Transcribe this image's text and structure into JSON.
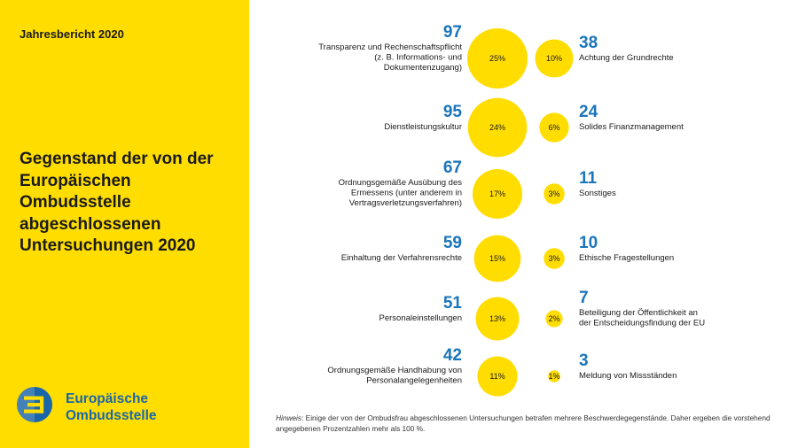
{
  "sidebar": {
    "report_label": "Jahresbericht 2020",
    "title": "Gegenstand der von der Europäischen Ombudsstelle abgeschlossenen Untersuchungen 2020",
    "logo_line1": "Europäische",
    "logo_line2": "Ombudsstelle"
  },
  "colors": {
    "accent_yellow": "#FFDD00",
    "count_blue": "#1a75bb",
    "logo_blue": "#1a66a8"
  },
  "icons": {
    "logo": "european-ombudsman-logo-icon"
  },
  "note": {
    "prefix": "Hinweis",
    "text": ": Einige der von der Ombudsfrau abgeschlossenen Untersuchungen betrafen mehrere Beschwerdegegenstände. Daher ergeben die vorstehend angegebenen Prozentzahlen mehr als 100 %."
  },
  "chart_data": {
    "type": "bubble",
    "left": [
      {
        "count": "97",
        "percent": "25%",
        "value": 25,
        "label": [
          "Transparenz und Rechenschaftspflicht",
          "(z. B. Informations- und",
          "Dokumentenzugang)"
        ]
      },
      {
        "count": "95",
        "percent": "24%",
        "value": 24,
        "label": [
          "Dienstleistungskultur"
        ]
      },
      {
        "count": "67",
        "percent": "17%",
        "value": 17,
        "label": [
          "Ordnungsgemäße Ausübung des",
          "Ermessens (unter anderem in",
          "Vertragsverletzungsverfahren)"
        ]
      },
      {
        "count": "59",
        "percent": "15%",
        "value": 15,
        "label": [
          "Einhaltung der Verfahrensrechte"
        ]
      },
      {
        "count": "51",
        "percent": "13%",
        "value": 13,
        "label": [
          "Personaleinstellungen"
        ]
      },
      {
        "count": "42",
        "percent": "11%",
        "value": 11,
        "label": [
          "Ordnungsgemäße Handhabung von",
          "Personalangelegenheiten"
        ]
      }
    ],
    "right": [
      {
        "count": "38",
        "percent": "10%",
        "value": 10,
        "label": [
          "Achtung der Grundrechte"
        ]
      },
      {
        "count": "24",
        "percent": "6%",
        "value": 6,
        "label": [
          "Solides Finanzmanagement"
        ]
      },
      {
        "count": "11",
        "percent": "3%",
        "value": 3,
        "label": [
          "Sonstiges"
        ]
      },
      {
        "count": "10",
        "percent": "3%",
        "value": 3,
        "label": [
          "Ethische Fragestellungen"
        ]
      },
      {
        "count": "7",
        "percent": "2%",
        "value": 2,
        "label": [
          "Beteiligung der Öffentlichkeit an",
          "der Entscheidungsfindung der EU"
        ]
      },
      {
        "count": "3",
        "percent": "1%",
        "value": 1,
        "label": [
          "Meldung von Missständen"
        ]
      }
    ]
  }
}
